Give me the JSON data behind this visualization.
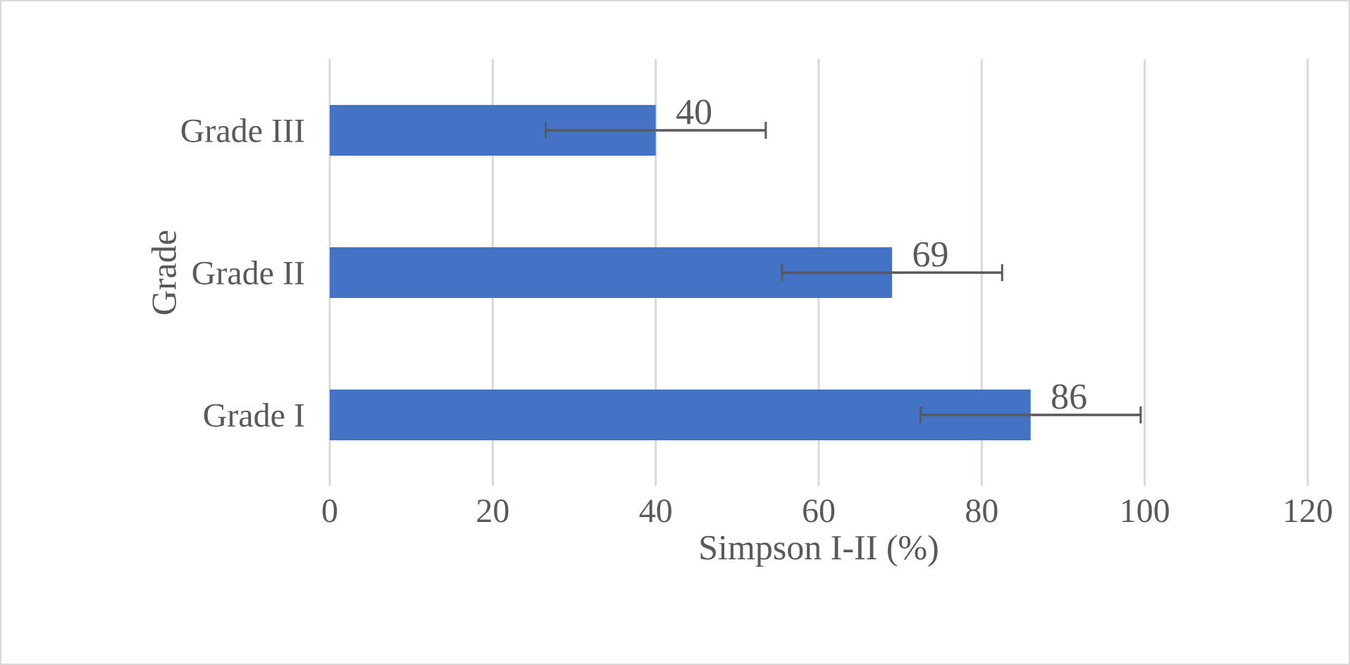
{
  "chart_data": {
    "type": "bar",
    "orientation": "horizontal",
    "xlabel": "Simpson I-II (%)",
    "ylabel": "Grade",
    "categories": [
      "Grade III",
      "Grade II",
      "Grade I"
    ],
    "values": [
      40,
      69,
      86
    ],
    "errors": [
      13.5,
      13.5,
      13.5
    ],
    "color": "#4472c4",
    "xlim": [
      0,
      120
    ],
    "xticks": [
      0,
      20,
      40,
      60,
      80,
      100,
      120
    ],
    "grid": "x",
    "data_labels": true
  }
}
